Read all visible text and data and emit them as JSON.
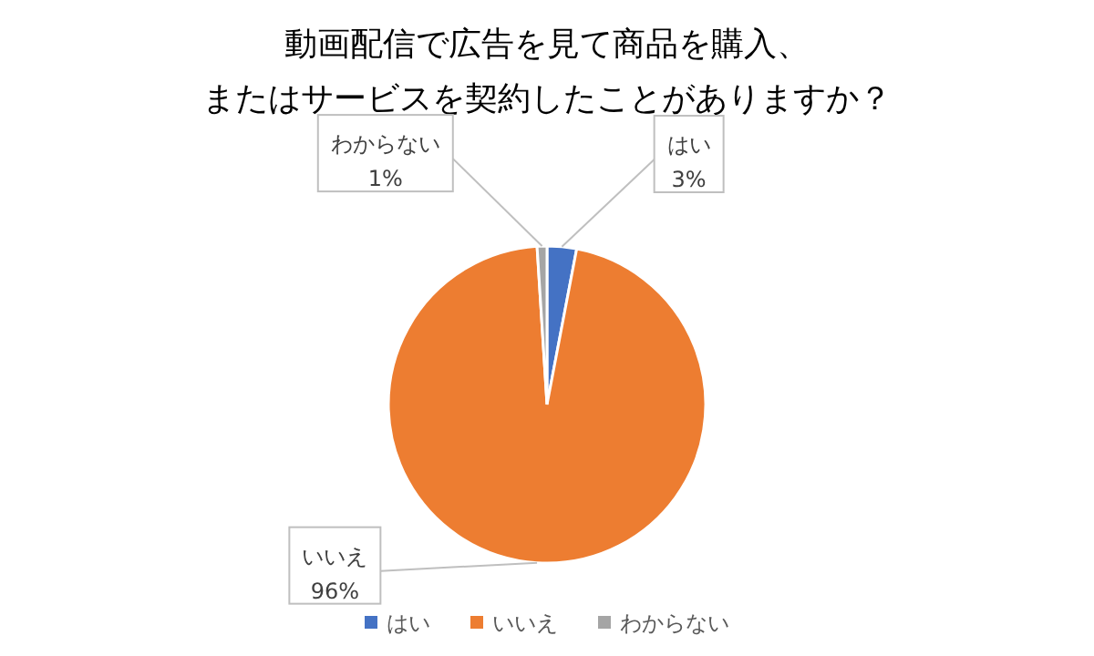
{
  "chart_data": {
    "type": "pie",
    "title": "動画配信で広告を見て商品を購入、またはサービスを契約したことがありますか？",
    "categories": [
      "はい",
      "いいえ",
      "わからない"
    ],
    "values": [
      3,
      96,
      1
    ],
    "colors": [
      "#4472c4",
      "#ed7d31",
      "#a5a5a5"
    ],
    "value_labels": [
      "3%",
      "96%",
      "1%"
    ],
    "legend": "bottom"
  }
}
